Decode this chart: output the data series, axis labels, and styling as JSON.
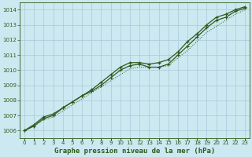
{
  "title": "Graphe pression niveau de la mer (hPa)",
  "xlabel_hours": [
    0,
    1,
    2,
    3,
    4,
    5,
    6,
    7,
    8,
    9,
    10,
    11,
    12,
    13,
    14,
    15,
    16,
    17,
    18,
    19,
    20,
    21,
    22,
    23
  ],
  "line1": [
    1006.0,
    1006.4,
    1006.9,
    1007.1,
    1007.5,
    1007.9,
    1008.3,
    1008.6,
    1009.0,
    1009.5,
    1010.0,
    1010.3,
    1010.4,
    1010.2,
    1010.2,
    1010.4,
    1011.0,
    1011.6,
    1012.2,
    1012.8,
    1013.3,
    1013.5,
    1013.9,
    1014.1
  ],
  "line2": [
    1006.0,
    1006.3,
    1006.8,
    1007.0,
    1007.5,
    1007.9,
    1008.3,
    1008.7,
    1009.2,
    1009.7,
    1010.2,
    1010.5,
    1010.5,
    1010.4,
    1010.5,
    1010.7,
    1011.2,
    1011.9,
    1012.4,
    1013.0,
    1013.5,
    1013.7,
    1014.0,
    1014.2
  ],
  "line3": [
    1006.0,
    1006.3,
    1006.7,
    1006.9,
    1007.3,
    1007.7,
    1008.1,
    1008.5,
    1008.9,
    1009.3,
    1009.7,
    1010.1,
    1010.2,
    1010.2,
    1010.2,
    1010.3,
    1010.8,
    1011.3,
    1011.9,
    1012.5,
    1012.9,
    1013.3,
    1013.7,
    1014.0
  ],
  "line_color": "#2d5a1b",
  "bg_color": "#cce8f0",
  "grid_color": "#aac8d8",
  "ylim": [
    1005.5,
    1014.5
  ],
  "yticks": [
    1006,
    1007,
    1008,
    1009,
    1010,
    1011,
    1012,
    1013,
    1014
  ],
  "title_fontsize": 6.5,
  "tick_fontsize": 5.0
}
